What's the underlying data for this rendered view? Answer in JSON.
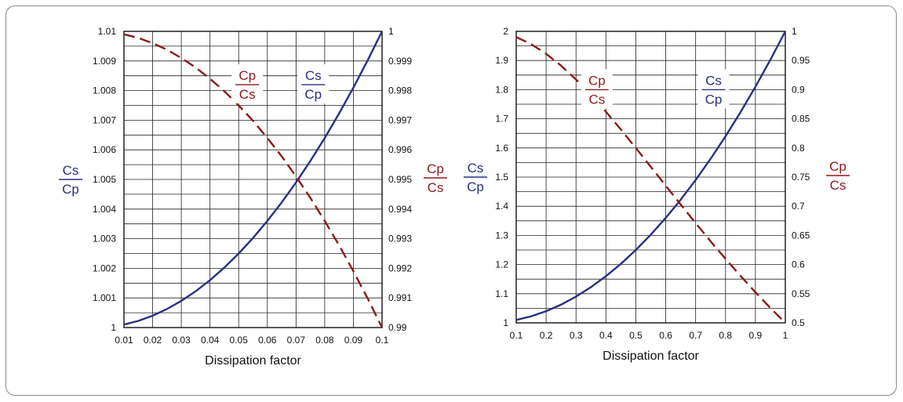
{
  "colors": {
    "cs_cp": "#283080",
    "cp_cs": "#8b1a1a",
    "grid": "#222222"
  },
  "chart_data": [
    {
      "type": "line",
      "xlabel": "Dissipation factor",
      "x_ticks": [
        "0.01",
        "0.02",
        "0.03",
        "0.04",
        "0.05",
        "0.06",
        "0.07",
        "0.08",
        "0.09",
        "0.1"
      ],
      "x_range": [
        0.01,
        0.1
      ],
      "left_axis": {
        "label_num": "Cs",
        "label_den": "Cp",
        "range": [
          1,
          1.01
        ],
        "ticks": [
          "1",
          "1.001",
          "1.002",
          "1.003",
          "1.004",
          "1.005",
          "1.006",
          "1.007",
          "1.008",
          "1.009",
          "1.01"
        ]
      },
      "right_axis": {
        "label_num": "Cp",
        "label_den": "Cs",
        "range": [
          0.99,
          1
        ],
        "ticks": [
          "0.99",
          "0.991",
          "0.992",
          "0.993",
          "0.994",
          "0.995",
          "0.996",
          "0.997",
          "0.998",
          "0.999",
          "1"
        ]
      },
      "series": [
        {
          "axis": "left",
          "style": "solid",
          "x": [
            0.01,
            0.015,
            0.02,
            0.025,
            0.03,
            0.035,
            0.04,
            0.045,
            0.05,
            0.055,
            0.06,
            0.065,
            0.07,
            0.075,
            0.08,
            0.085,
            0.09,
            0.095,
            0.1
          ],
          "y": [
            1.0001,
            1.000225,
            1.0004,
            1.000625,
            1.0009,
            1.001225,
            1.0016,
            1.002025,
            1.0025,
            1.003025,
            1.0036,
            1.004225,
            1.0049,
            1.005625,
            1.0064,
            1.007225,
            1.0081,
            1.009025,
            1.01
          ]
        },
        {
          "axis": "right",
          "style": "dashed",
          "x": [
            0.01,
            0.015,
            0.02,
            0.025,
            0.03,
            0.035,
            0.04,
            0.045,
            0.05,
            0.055,
            0.06,
            0.065,
            0.07,
            0.075,
            0.08,
            0.085,
            0.09,
            0.095,
            0.1
          ],
          "y": [
            0.9999,
            0.99978,
            0.9996,
            0.99938,
            0.9991,
            0.99878,
            0.9984,
            0.99798,
            0.9975,
            0.99698,
            0.9964,
            0.99578,
            0.9951,
            0.99438,
            0.9936,
            0.99278,
            0.9919,
            0.99098,
            0.99
          ]
        }
      ],
      "annotations": [
        {
          "num": "Cp",
          "den": "Cs",
          "color": "cp_cs",
          "at_x": 0.053,
          "at_y_left": 1.0082
        },
        {
          "num": "Cs",
          "den": "Cp",
          "color": "cs_cp",
          "at_x": 0.076,
          "at_y_left": 1.0082
        }
      ]
    },
    {
      "type": "line",
      "xlabel": "Dissipation factor",
      "x_ticks": [
        "0.1",
        "0.2",
        "0.3",
        "0.4",
        "0.5",
        "0.6",
        "0.7",
        "0.8",
        "0.9",
        "1"
      ],
      "x_range": [
        0.1,
        1
      ],
      "left_axis": {
        "label_num": "Cs",
        "label_den": "Cp",
        "range": [
          1,
          2
        ],
        "ticks": [
          "1",
          "1.1",
          "1.2",
          "1.3",
          "1.4",
          "1.5",
          "1.6",
          "1.7",
          "1.8",
          "1.9",
          "2"
        ]
      },
      "right_axis": {
        "label_num": "Cp",
        "label_den": "Cs",
        "range": [
          0.5,
          1
        ],
        "ticks": [
          "0.5",
          "0.55",
          "0.6",
          "0.65",
          "0.7",
          "0.75",
          "0.8",
          "0.85",
          "0.9",
          "0.95",
          "1"
        ]
      },
      "series": [
        {
          "axis": "left",
          "style": "solid",
          "x": [
            0.1,
            0.15,
            0.2,
            0.25,
            0.3,
            0.35,
            0.4,
            0.45,
            0.5,
            0.55,
            0.6,
            0.65,
            0.7,
            0.75,
            0.8,
            0.85,
            0.9,
            0.95,
            1
          ],
          "y": [
            1.01,
            1.0225,
            1.04,
            1.0625,
            1.09,
            1.1225,
            1.16,
            1.2025,
            1.25,
            1.3025,
            1.36,
            1.4225,
            1.49,
            1.5625,
            1.64,
            1.7225,
            1.81,
            1.9025,
            2
          ]
        },
        {
          "axis": "right",
          "style": "dashed",
          "x": [
            0.1,
            0.15,
            0.2,
            0.25,
            0.3,
            0.35,
            0.4,
            0.45,
            0.5,
            0.55,
            0.6,
            0.65,
            0.7,
            0.75,
            0.8,
            0.85,
            0.9,
            0.95,
            1
          ],
          "y": [
            0.9901,
            0.978,
            0.9615,
            0.9412,
            0.9174,
            0.8909,
            0.8621,
            0.8316,
            0.8,
            0.7677,
            0.7353,
            0.703,
            0.6711,
            0.64,
            0.6098,
            0.5806,
            0.5525,
            0.5256,
            0.5
          ]
        }
      ],
      "annotations": [
        {
          "num": "Cp",
          "den": "Cs",
          "color": "cp_cs",
          "at_x": 0.37,
          "at_y_left": 1.8
        },
        {
          "num": "Cs",
          "den": "Cp",
          "color": "cs_cp",
          "at_x": 0.76,
          "at_y_left": 1.8
        }
      ]
    }
  ]
}
